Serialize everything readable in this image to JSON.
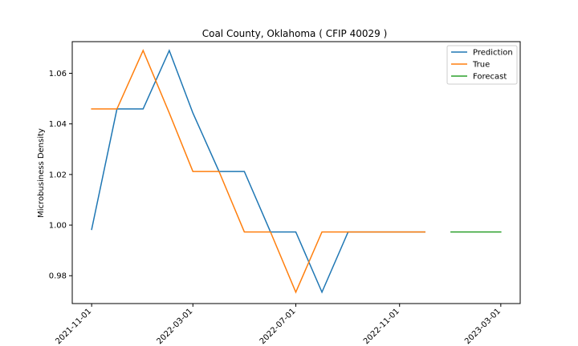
{
  "chart_data": {
    "type": "line",
    "title": "Coal County, Oklahoma ( CFIP 40029 )",
    "xlabel": "",
    "ylabel": "Microbusiness Density",
    "x_ticks": [
      "2021-11-01",
      "2022-03-01",
      "2022-07-01",
      "2022-11-01",
      "2023-03-01"
    ],
    "y_ticks": [
      "0.98",
      "1.00",
      "1.02",
      "1.04",
      "1.06"
    ],
    "xlim": [
      "2021-10-09",
      "2023-03-24"
    ],
    "ylim": [
      0.969,
      1.0725
    ],
    "grid": false,
    "legend_position": "top-right",
    "series": [
      {
        "name": "Prediction",
        "color": "#1f77b4",
        "x": [
          "2021-11-01",
          "2021-12-01",
          "2022-01-01",
          "2022-02-01",
          "2022-03-01",
          "2022-04-01",
          "2022-05-01",
          "2022-06-01",
          "2022-07-01",
          "2022-08-01",
          "2022-09-01",
          "2022-10-01",
          "2022-11-01",
          "2022-12-01"
        ],
        "values": [
          0.9983,
          1.0459,
          1.0459,
          1.069,
          1.0443,
          1.0212,
          1.0212,
          0.9973,
          0.9973,
          0.9735,
          0.9973,
          0.9973,
          0.9973,
          0.9973
        ]
      },
      {
        "name": "True",
        "color": "#ff7f0e",
        "x": [
          "2021-11-01",
          "2021-12-01",
          "2022-01-01",
          "2022-02-01",
          "2022-03-01",
          "2022-04-01",
          "2022-05-01",
          "2022-06-01",
          "2022-07-01",
          "2022-08-01",
          "2022-09-01",
          "2022-10-01",
          "2022-11-01",
          "2022-12-01"
        ],
        "values": [
          1.0459,
          1.0459,
          1.069,
          1.0443,
          1.0212,
          1.0212,
          0.9973,
          0.9973,
          0.9735,
          0.9973,
          0.9973,
          0.9973,
          0.9973,
          0.9973
        ]
      },
      {
        "name": "Forecast",
        "color": "#2ca02c",
        "x": [
          "2023-01-01",
          "2023-02-01",
          "2023-03-01"
        ],
        "values": [
          0.9973,
          0.9973,
          0.9973
        ]
      }
    ]
  }
}
